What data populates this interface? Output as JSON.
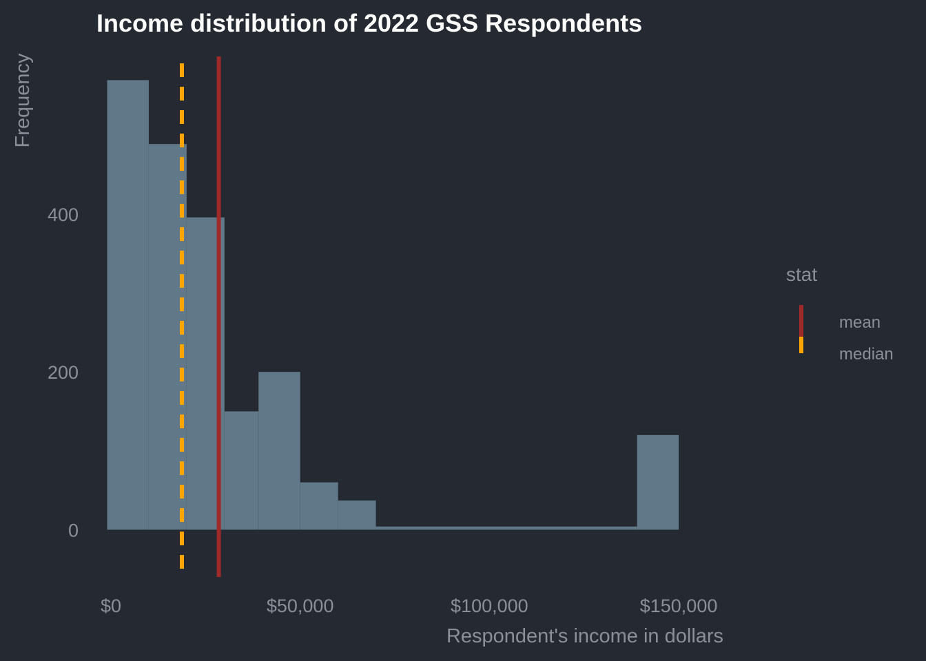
{
  "chart_data": {
    "type": "bar",
    "title": "Income distribution of 2022 GSS Respondents",
    "xlabel": "Respondent's income in dollars",
    "ylabel": "Frequency",
    "xlim": [
      -2000,
      160000
    ],
    "ylim": [
      -60,
      600
    ],
    "x_ticks": [
      {
        "value": 0,
        "label": "$0"
      },
      {
        "value": 50000,
        "label": "$50,000"
      },
      {
        "value": 100000,
        "label": "$100,000"
      },
      {
        "value": 150000,
        "label": "$150,000"
      }
    ],
    "y_ticks": [
      {
        "value": 0,
        "label": "0"
      },
      {
        "value": 200,
        "label": "200"
      },
      {
        "value": 400,
        "label": "400"
      }
    ],
    "bins": [
      {
        "x0": -1000,
        "x1": 10000,
        "count": 570
      },
      {
        "x0": 10000,
        "x1": 20000,
        "count": 489
      },
      {
        "x0": 20000,
        "x1": 30000,
        "count": 396
      },
      {
        "x0": 30000,
        "x1": 39000,
        "count": 150
      },
      {
        "x0": 39000,
        "x1": 50000,
        "count": 200
      },
      {
        "x0": 50000,
        "x1": 60000,
        "count": 60
      },
      {
        "x0": 60000,
        "x1": 70000,
        "count": 37
      },
      {
        "x0": 70000,
        "x1": 139000,
        "count": 4
      },
      {
        "x0": 139000,
        "x1": 150000,
        "count": 120
      }
    ],
    "reference_lines": [
      {
        "stat": "mean",
        "value": 28500,
        "color": "#a02a2a",
        "style": "solid"
      },
      {
        "stat": "median",
        "value": 18750,
        "color": "#ffa500",
        "style": "dashed"
      }
    ],
    "bar_color": "#607887",
    "legend": {
      "title": "stat",
      "placement": "right",
      "entries": [
        {
          "label": "mean",
          "color": "#a02a2a"
        },
        {
          "label": "median",
          "color": "#ffa500"
        }
      ]
    },
    "grid": false
  },
  "colors": {
    "background": "#252932",
    "text_muted": "#8a8f98",
    "title": "#ffffff"
  }
}
